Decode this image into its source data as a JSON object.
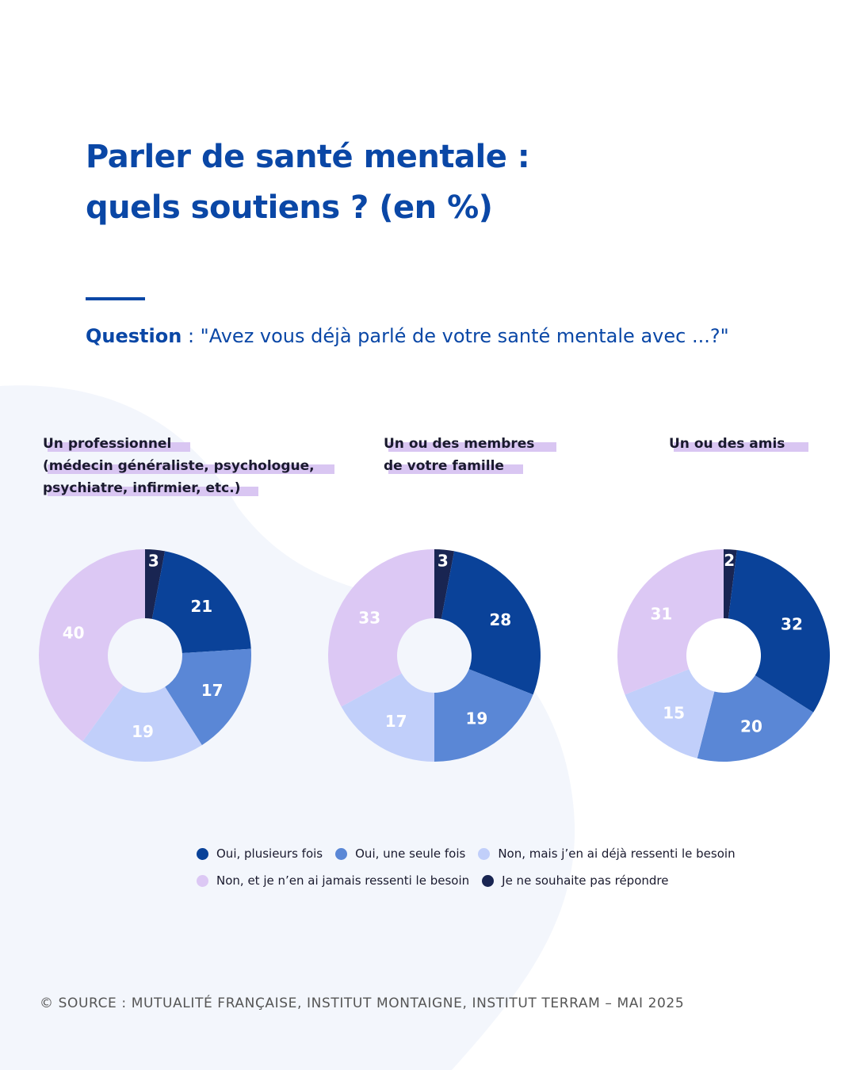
{
  "title": {
    "line1": "Parler de santé mentale :",
    "line2": "quels soutiens ? (en %)"
  },
  "question": {
    "label": "Question",
    "text": " : \"Avez vous déjà parlé de votre santé mentale avec ...?\""
  },
  "colors": {
    "accent": "#0a47a6",
    "highlight": "#d9c6f2",
    "blob": "#f3f6fc"
  },
  "chart_data": [
    {
      "type": "pie",
      "title": "Un professionnel (médecin généraliste, psychologue, psychiatre, infirmier, etc.)",
      "title_lines": [
        "Un professionnel",
        "(médecin généraliste, psychologue,",
        "psychiatre, infirmier, etc.)"
      ],
      "categories": [
        "Oui, plusieurs fois",
        "Oui, une seule fois",
        "Non, mais j’en ai déjà ressenti le besoin",
        "Non, et je n’en ai jamais ressenti le besoin",
        "Je ne souhaite pas répondre"
      ],
      "values": [
        21,
        17,
        19,
        40,
        3
      ]
    },
    {
      "type": "pie",
      "title": "Un ou des membres de votre famille",
      "title_lines": [
        "Un ou des membres",
        "de votre famille"
      ],
      "categories": [
        "Oui, plusieurs fois",
        "Oui, une seule fois",
        "Non, mais j’en ai déjà ressenti le besoin",
        "Non, et je n’en ai jamais ressenti le besoin",
        "Je ne souhaite pas répondre"
      ],
      "values": [
        28,
        19,
        17,
        33,
        3
      ]
    },
    {
      "type": "pie",
      "title": "Un ou des amis",
      "title_lines": [
        "Un ou des amis"
      ],
      "categories": [
        "Oui, plusieurs fois",
        "Oui, une seule fois",
        "Non, mais j’en ai déjà ressenti le besoin",
        "Non, et je n’en ai jamais ressenti le besoin",
        "Je ne souhaite pas répondre"
      ],
      "values": [
        32,
        20,
        15,
        31,
        2
      ]
    }
  ],
  "legend": [
    {
      "label": "Oui, plusieurs fois",
      "color": "#0a4299"
    },
    {
      "label": "Oui, une seule fois",
      "color": "#5a87d6"
    },
    {
      "label": "Non, mais j’en ai déjà ressenti le besoin",
      "color": "#c1cffa"
    },
    {
      "label": "Non, et je n’en ai jamais ressenti le besoin",
      "color": "#dcc8f4"
    },
    {
      "label": "Je ne souhaite pas répondre",
      "color": "#192552"
    }
  ],
  "source": "© SOURCE : MUTUALITÉ FRANÇAISE, INSTITUT MONTAIGNE, INSTITUT TERRAM – MAI 2025"
}
